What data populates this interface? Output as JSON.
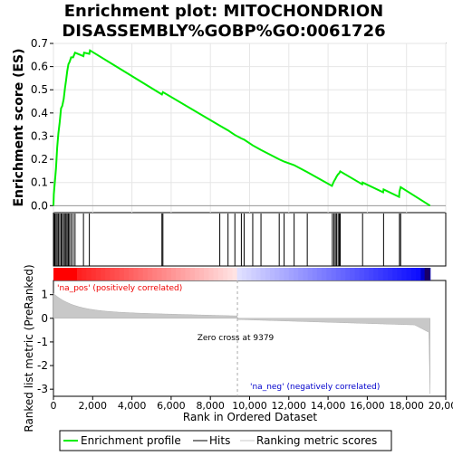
{
  "chart_data": {
    "type": "line",
    "title_line1": "Enrichment plot: MITOCHONDRION",
    "title_line2": "DISASSEMBLY%GOBP%GO:0061726",
    "xlabel": "Rank in Ordered Dataset",
    "ylabel_top": "Enrichment score (ES)",
    "ylabel_bottom": "Ranked list metric (PreRanked)",
    "xlim": [
      0,
      20000
    ],
    "ylim_top": [
      -0.03,
      0.7
    ],
    "ylim_bottom": [
      -3.3,
      1.6
    ],
    "x_ticks": [
      0,
      2000,
      4000,
      6000,
      8000,
      10000,
      12000,
      14000,
      16000,
      18000,
      20000
    ],
    "x_tick_labels": [
      "0",
      "2,000",
      "4,000",
      "6,000",
      "8,000",
      "10,000",
      "12,000",
      "14,000",
      "16,000",
      "18,000",
      "20,000"
    ],
    "y_ticks_top": [
      0.0,
      0.1,
      0.2,
      0.3,
      0.4,
      0.5,
      0.6,
      0.7
    ],
    "y_tick_labels_top": [
      "0.0",
      "0.1",
      "0.2",
      "0.3",
      "0.4",
      "0.5",
      "0.6",
      "0.7"
    ],
    "y_ticks_bottom": [
      1,
      0,
      -1,
      -2,
      -3
    ],
    "y_tick_labels_bottom": [
      "1",
      "0",
      "-1",
      "-2",
      "-3"
    ],
    "total_ranks": 19200,
    "zero_cross": 9379,
    "zero_cross_label": "Zero cross at 9379",
    "pos_label": "'na_pos' (positively correlated)",
    "neg_label": "'na_neg' (negatively correlated)",
    "hits": [
      20,
      70,
      130,
      190,
      250,
      320,
      390,
      450,
      520,
      590,
      640,
      700,
      760,
      820,
      900,
      1000,
      1100,
      1530,
      1830,
      5530,
      5580,
      8480,
      8900,
      9250,
      9580,
      9720,
      10160,
      10580,
      11510,
      11760,
      12270,
      12940,
      14220,
      14300,
      14370,
      14430,
      14510,
      14570,
      14620,
      15760,
      16830,
      17640,
      17700
    ],
    "es_profile": [
      [
        0,
        0.0
      ],
      [
        20,
        0.05
      ],
      [
        70,
        0.1
      ],
      [
        130,
        0.16
      ],
      [
        190,
        0.25
      ],
      [
        250,
        0.31
      ],
      [
        320,
        0.36
      ],
      [
        390,
        0.42
      ],
      [
        450,
        0.43
      ],
      [
        520,
        0.46
      ],
      [
        590,
        0.51
      ],
      [
        640,
        0.54
      ],
      [
        700,
        0.58
      ],
      [
        760,
        0.61
      ],
      [
        820,
        0.62
      ],
      [
        900,
        0.64
      ],
      [
        1000,
        0.64
      ],
      [
        1100,
        0.66
      ],
      [
        1530,
        0.645
      ],
      [
        1560,
        0.66
      ],
      [
        1830,
        0.655
      ],
      [
        1860,
        0.67
      ],
      [
        5530,
        0.48
      ],
      [
        5580,
        0.49
      ],
      [
        8480,
        0.345
      ],
      [
        8900,
        0.325
      ],
      [
        9250,
        0.305
      ],
      [
        9580,
        0.29
      ],
      [
        9720,
        0.285
      ],
      [
        10160,
        0.26
      ],
      [
        10580,
        0.24
      ],
      [
        11510,
        0.2
      ],
      [
        11760,
        0.19
      ],
      [
        12270,
        0.175
      ],
      [
        12940,
        0.145
      ],
      [
        14200,
        0.085
      ],
      [
        14220,
        0.09
      ],
      [
        14300,
        0.105
      ],
      [
        14370,
        0.115
      ],
      [
        14430,
        0.125
      ],
      [
        14510,
        0.135
      ],
      [
        14570,
        0.14
      ],
      [
        14620,
        0.148
      ],
      [
        15740,
        0.092
      ],
      [
        15760,
        0.1
      ],
      [
        16810,
        0.058
      ],
      [
        16830,
        0.07
      ],
      [
        17620,
        0.038
      ],
      [
        17640,
        0.06
      ],
      [
        17700,
        0.08
      ],
      [
        19200,
        0.0
      ]
    ],
    "legend": {
      "items": [
        {
          "label": "Enrichment profile",
          "color": "#00ee00"
        },
        {
          "label": "Hits",
          "color": "#000000"
        },
        {
          "label": "Ranking metric scores",
          "color": "#c8c8c8"
        }
      ]
    },
    "colors": {
      "profile": "#00ee00",
      "hits": "#000000",
      "metric": "#c8c8c8",
      "pos_label": "#ee0000",
      "neg_label": "#0000cc",
      "zero_line": "#aaaaaa"
    }
  }
}
